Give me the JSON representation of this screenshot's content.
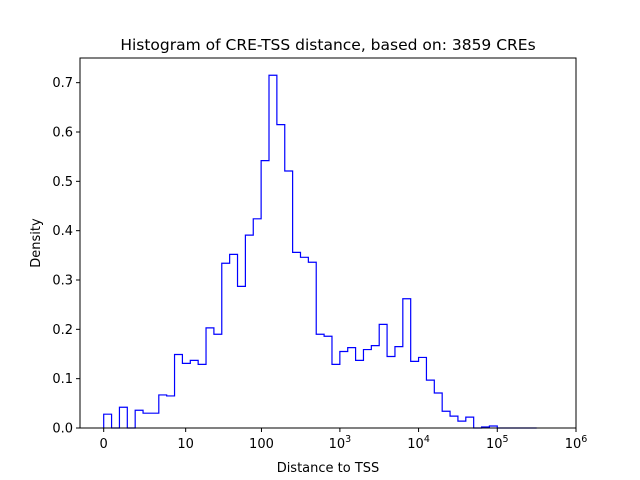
{
  "chart_data": {
    "type": "histogram",
    "title": "Histogram of CRE-TSS distance, based on: 3859 CREs",
    "xlabel": "Distance to TSS",
    "ylabel": "Density",
    "x_scale": "symlog",
    "xlim": [
      -1,
      1000000
    ],
    "ylim": [
      0,
      0.75
    ],
    "line_color": "#0000ff",
    "x_ticks": [
      {
        "value": 0,
        "label": "0"
      },
      {
        "value": 10,
        "label": "10"
      },
      {
        "value": 100,
        "label": "100"
      },
      {
        "value": 1000,
        "label": "10",
        "sup": "3"
      },
      {
        "value": 10000,
        "label": "10",
        "sup": "4"
      },
      {
        "value": 100000,
        "label": "10",
        "sup": "5"
      },
      {
        "value": 1000000,
        "label": "10",
        "sup": "6"
      }
    ],
    "y_ticks": [
      {
        "value": 0.0,
        "label": "0.0"
      },
      {
        "value": 0.1,
        "label": "0.1"
      },
      {
        "value": 0.2,
        "label": "0.2"
      },
      {
        "value": 0.3,
        "label": "0.3"
      },
      {
        "value": 0.4,
        "label": "0.4"
      },
      {
        "value": 0.5,
        "label": "0.5"
      },
      {
        "value": 0.6,
        "label": "0.6"
      },
      {
        "value": 0.7,
        "label": "0.7"
      }
    ],
    "bins_symlog": {
      "start": 0,
      "end": 5.5,
      "width": 0.1,
      "densities": [
        0.028,
        0.0,
        0.042,
        0.0,
        0.036,
        0.03,
        0.03,
        0.067,
        0.065,
        0.149,
        0.131,
        0.137,
        0.129,
        0.203,
        0.19,
        0.334,
        0.352,
        0.287,
        0.391,
        0.424,
        0.542,
        0.715,
        0.615,
        0.521,
        0.356,
        0.346,
        0.336,
        0.19,
        0.186,
        0.129,
        0.155,
        0.163,
        0.137,
        0.159,
        0.167,
        0.21,
        0.145,
        0.165,
        0.262,
        0.135,
        0.143,
        0.097,
        0.071,
        0.034,
        0.024,
        0.014,
        0.022,
        0.0,
        0.002,
        0.004,
        0.0,
        0.0,
        0.0,
        0.0,
        0.0
      ]
    }
  }
}
